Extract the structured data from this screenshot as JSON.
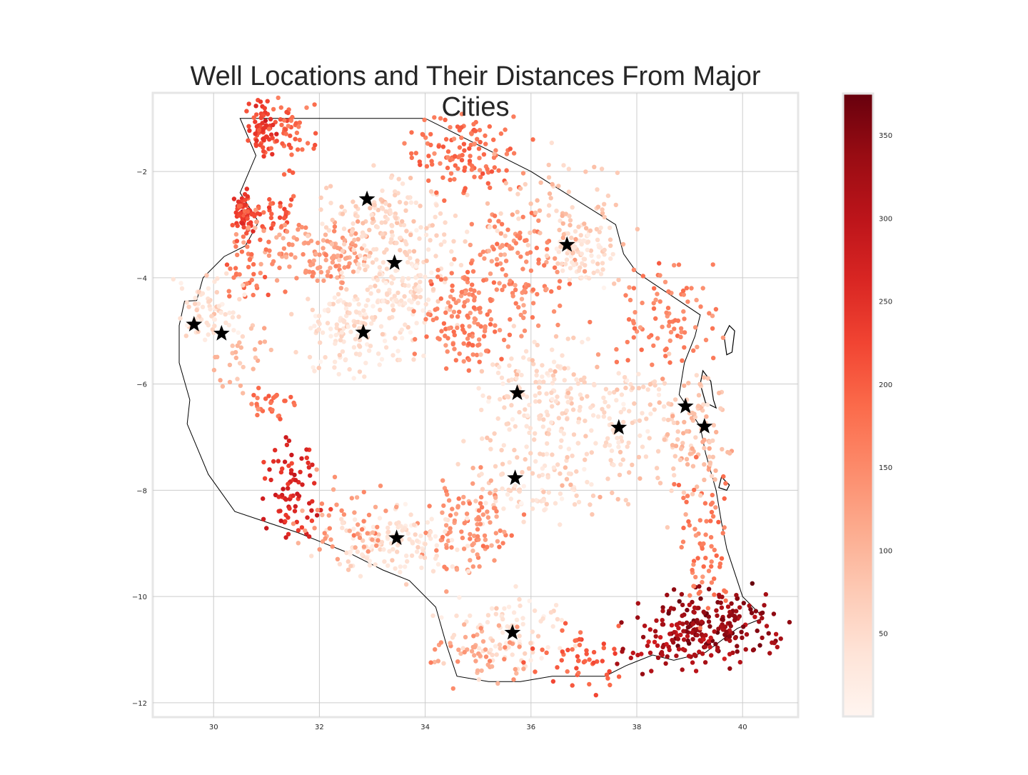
{
  "chart_data": {
    "type": "scatter",
    "title": "Well Locations and Their Distances From Major Cities",
    "xlabel": "",
    "ylabel": "",
    "xlim": [
      28.85,
      41.05
    ],
    "ylim": [
      -12.27,
      -0.52
    ],
    "x_ticks": [
      30,
      32,
      34,
      36,
      38,
      40
    ],
    "y_ticks": [
      -2,
      -4,
      -6,
      -8,
      -10,
      -12
    ],
    "x_tick_labels": [
      "30",
      "32",
      "34",
      "36",
      "38",
      "40"
    ],
    "y_tick_labels": [
      "−2",
      "−4",
      "−6",
      "−8",
      "−10",
      "−12"
    ],
    "grid": true,
    "colormap": "Reds",
    "colorbar": {
      "min": 0,
      "max": 375,
      "ticks": [
        50,
        100,
        150,
        200,
        250,
        300,
        350
      ],
      "tick_labels": [
        "50",
        "100",
        "150",
        "200",
        "250",
        "300",
        "350"
      ]
    },
    "colors": {
      "low": "#fff5f0",
      "mid": "#fb6a4a",
      "high": "#67000d",
      "boundary": "#000000",
      "grid": "#cccccc",
      "marker": "#000000"
    },
    "series": [
      {
        "marker": "star",
        "points": [
          {
            "x": 32.9,
            "y": -2.52
          },
          {
            "x": 33.42,
            "y": -3.72
          },
          {
            "x": 36.68,
            "y": -3.38
          },
          {
            "x": 29.63,
            "y": -4.88
          },
          {
            "x": 30.15,
            "y": -5.05
          },
          {
            "x": 32.83,
            "y": -5.03
          },
          {
            "x": 35.74,
            "y": -6.17
          },
          {
            "x": 38.92,
            "y": -6.42
          },
          {
            "x": 39.28,
            "y": -6.8
          },
          {
            "x": 37.66,
            "y": -6.82
          },
          {
            "x": 35.7,
            "y": -7.77
          },
          {
            "x": 33.46,
            "y": -8.9
          },
          {
            "x": 35.65,
            "y": -10.68
          }
        ]
      },
      {
        "marker": "dot",
        "clusters": [
          {
            "x": 30.9,
            "y": -1.2,
            "sx": 0.12,
            "sy": 0.25,
            "n": 70,
            "v": 230
          },
          {
            "x": 31.5,
            "y": -1.3,
            "sx": 0.2,
            "sy": 0.3,
            "n": 50,
            "v": 190
          },
          {
            "x": 30.6,
            "y": -2.8,
            "sx": 0.1,
            "sy": 0.2,
            "n": 55,
            "v": 235
          },
          {
            "x": 31.2,
            "y": -2.8,
            "sx": 0.3,
            "sy": 0.15,
            "n": 40,
            "v": 200
          },
          {
            "x": 31.4,
            "y": -3.5,
            "sx": 0.4,
            "sy": 0.3,
            "n": 50,
            "v": 130
          },
          {
            "x": 30.6,
            "y": -3.9,
            "sx": 0.3,
            "sy": 0.3,
            "n": 40,
            "v": 170
          },
          {
            "x": 32.3,
            "y": -3.6,
            "sx": 0.3,
            "sy": 0.3,
            "n": 90,
            "v": 130
          },
          {
            "x": 33.3,
            "y": -2.9,
            "sx": 0.6,
            "sy": 0.4,
            "n": 150,
            "v": 60
          },
          {
            "x": 33.5,
            "y": -4.1,
            "sx": 0.5,
            "sy": 0.4,
            "n": 140,
            "v": 45
          },
          {
            "x": 32.7,
            "y": -5.0,
            "sx": 0.5,
            "sy": 0.4,
            "n": 140,
            "v": 45
          },
          {
            "x": 29.9,
            "y": -4.7,
            "sx": 0.3,
            "sy": 0.3,
            "n": 70,
            "v": 45
          },
          {
            "x": 34.8,
            "y": -1.7,
            "sx": 0.5,
            "sy": 0.35,
            "n": 120,
            "v": 180
          },
          {
            "x": 35.8,
            "y": -3.8,
            "sx": 0.5,
            "sy": 0.6,
            "n": 130,
            "v": 150
          },
          {
            "x": 34.7,
            "y": -4.7,
            "sx": 0.4,
            "sy": 0.5,
            "n": 130,
            "v": 160
          },
          {
            "x": 37.0,
            "y": -3.5,
            "sx": 0.3,
            "sy": 0.3,
            "n": 80,
            "v": 40
          },
          {
            "x": 36.4,
            "y": -2.8,
            "sx": 0.6,
            "sy": 0.5,
            "n": 80,
            "v": 80
          },
          {
            "x": 38.5,
            "y": -4.8,
            "sx": 0.5,
            "sy": 0.5,
            "n": 90,
            "v": 160
          },
          {
            "x": 36.2,
            "y": -6.2,
            "sx": 0.6,
            "sy": 0.5,
            "n": 150,
            "v": 55
          },
          {
            "x": 37.6,
            "y": -6.6,
            "sx": 0.6,
            "sy": 0.5,
            "n": 110,
            "v": 55
          },
          {
            "x": 39.1,
            "y": -6.9,
            "sx": 0.3,
            "sy": 0.5,
            "n": 90,
            "v": 90
          },
          {
            "x": 36.0,
            "y": -7.8,
            "sx": 0.6,
            "sy": 0.4,
            "n": 90,
            "v": 50
          },
          {
            "x": 34.8,
            "y": -8.8,
            "sx": 0.4,
            "sy": 0.5,
            "n": 110,
            "v": 140
          },
          {
            "x": 33.4,
            "y": -9.0,
            "sx": 0.6,
            "sy": 0.3,
            "n": 130,
            "v": 40
          },
          {
            "x": 31.5,
            "y": -8.0,
            "sx": 0.3,
            "sy": 0.5,
            "n": 80,
            "v": 260
          },
          {
            "x": 32.5,
            "y": -8.6,
            "sx": 0.4,
            "sy": 0.4,
            "n": 50,
            "v": 130
          },
          {
            "x": 35.7,
            "y": -10.7,
            "sx": 0.6,
            "sy": 0.4,
            "n": 90,
            "v": 40
          },
          {
            "x": 35.0,
            "y": -11.0,
            "sx": 0.4,
            "sy": 0.3,
            "n": 50,
            "v": 120
          },
          {
            "x": 36.9,
            "y": -11.1,
            "sx": 0.4,
            "sy": 0.3,
            "n": 50,
            "v": 200
          },
          {
            "x": 39.4,
            "y": -10.5,
            "sx": 0.6,
            "sy": 0.3,
            "n": 180,
            "v": 340
          },
          {
            "x": 38.7,
            "y": -10.9,
            "sx": 0.5,
            "sy": 0.25,
            "n": 70,
            "v": 310
          },
          {
            "x": 39.3,
            "y": -9.0,
            "sx": 0.3,
            "sy": 0.7,
            "n": 70,
            "v": 170
          },
          {
            "x": 30.5,
            "y": -5.5,
            "sx": 0.3,
            "sy": 0.3,
            "n": 30,
            "v": 100
          },
          {
            "x": 31.1,
            "y": -6.4,
            "sx": 0.2,
            "sy": 0.15,
            "n": 30,
            "v": 180
          },
          {
            "x": 37.8,
            "y": -7.8,
            "sx": 0.8,
            "sy": 0.4,
            "n": 40,
            "v": 80
          }
        ]
      }
    ]
  }
}
